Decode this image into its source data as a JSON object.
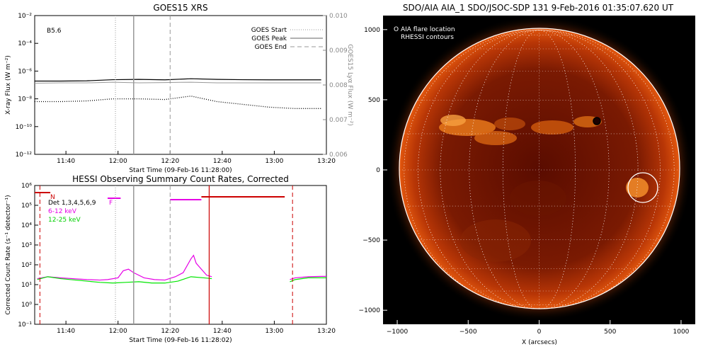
{
  "chart_data": [
    {
      "type": "line",
      "title": "GOES15 XRS",
      "xlabel": "Start Time (09-Feb-16 11:28:00)",
      "ylabel": "X-ray Flux (W m⁻²)",
      "ylabel2": "GOES15 Lyα Flux (W m⁻²)",
      "annotation": "B5.6",
      "x_ticks": [
        "11:40",
        "12:00",
        "12:20",
        "12:40",
        "13:00",
        "13:20"
      ],
      "y_ticks": [
        "10⁻²",
        "10⁻⁴",
        "10⁻⁶",
        "10⁻⁸",
        "10⁻¹⁰",
        "10⁻¹²"
      ],
      "y2_ticks": [
        "0.010",
        "0.009",
        "0.008",
        "0.007",
        "0.006"
      ],
      "y_scale": "log",
      "ylim_exp": [
        -12,
        -2
      ],
      "y2lim": [
        0.006,
        0.01
      ],
      "xlim_min": [
        0,
        112
      ],
      "legend": [
        "GOES Start",
        "GOES Peak",
        "GOES End"
      ],
      "legend_placement": "top-right",
      "event_lines_min": {
        "start": 31,
        "peak": 38,
        "end": 52
      },
      "series": [
        {
          "values_log": [
            -6.72,
            -6.72,
            -6.7,
            -6.62,
            -6.6,
            -6.63,
            -6.55,
            -6.6,
            -6.62,
            -6.63,
            -6.63,
            -6.63
          ]
        },
        {
          "values_lya": [
            0.00805,
            0.00806,
            0.00806,
            0.00808,
            0.00806,
            0.00807,
            0.00808,
            0.00806,
            0.00806,
            0.00806,
            0.00806,
            0.00806
          ]
        },
        {
          "values_log": [
            -8.2,
            -8.2,
            -8.15,
            -8.0,
            -8.0,
            -8.05,
            -7.8,
            -8.2,
            -8.4,
            -8.6,
            -8.7,
            -8.7
          ]
        }
      ],
      "x_min": [
        0,
        10,
        20,
        30,
        40,
        50,
        60,
        70,
        80,
        90,
        100,
        110
      ]
    },
    {
      "type": "line",
      "title": "HESSI Observing Summary Count Rates, Corrected",
      "xlabel": "Start Time (09-Feb-16 11:28:02)",
      "ylabel": "Corrected Count Rate (s⁻¹ detector⁻¹)",
      "x_ticks": [
        "11:40",
        "12:00",
        "12:20",
        "12:40",
        "13:00",
        "13:20"
      ],
      "y_ticks": [
        "10⁶",
        "10⁵",
        "10⁴",
        "10³",
        "10²",
        "10¹",
        "10⁰",
        "10⁻¹"
      ],
      "y_scale": "log",
      "ylim_exp": [
        -1,
        6
      ],
      "xlim_min": [
        0,
        112
      ],
      "flags": {
        "N": "N",
        "F": "F"
      },
      "legend": [
        {
          "name": "Det 1,3,4,5,6,9",
          "color": "#000000"
        },
        {
          "name": "6-12 keV",
          "color": "#e600e6"
        },
        {
          "name": "12-25 keV",
          "color": "#00e600"
        }
      ],
      "series": [
        {
          "name": "6-12 keV",
          "x_min": [
            1,
            5,
            10,
            20,
            25,
            28,
            32,
            34,
            36,
            38,
            42,
            46,
            50,
            54,
            57,
            60,
            61,
            62,
            64,
            66,
            68,
            98,
            100,
            105,
            110,
            112
          ],
          "values": [
            20,
            25,
            22,
            18,
            17,
            18,
            22,
            50,
            60,
            40,
            22,
            18,
            17,
            25,
            40,
            200,
            300,
            120,
            60,
            30,
            25,
            18,
            22,
            25,
            26,
            26
          ]
        },
        {
          "name": "12-25 keV",
          "x_min": [
            1,
            5,
            10,
            20,
            25,
            30,
            35,
            40,
            45,
            50,
            55,
            60,
            65,
            68,
            98,
            100,
            105,
            110,
            112
          ],
          "values": [
            18,
            25,
            20,
            15,
            13,
            12,
            13,
            14,
            12,
            12,
            15,
            25,
            22,
            20,
            14,
            18,
            22,
            22,
            22
          ]
        }
      ]
    },
    {
      "type": "image",
      "title": "SDO/AIA AIA_1 SDO/JSOC-SDP 131  9-Feb-2016 01:35:07.620 UT",
      "xlabel": "X (arcsecs)",
      "x_ticks": [
        "−1000",
        "−500",
        "0",
        "500",
        "1000"
      ],
      "y_ticks": [
        "1000",
        "500",
        "0",
        "−500",
        "−1000"
      ],
      "xlim": [
        -1100,
        1100
      ],
      "ylim": [
        -1100,
        1100
      ],
      "legend": [
        "O AIA flare location",
        "RHESSI contours"
      ],
      "legend_placement": "top-left",
      "flare_location": {
        "x": 400,
        "y": 330
      },
      "rhessi_contour": {
        "x": 720,
        "y": -130,
        "r": 100
      },
      "solar_radius": 985
    }
  ]
}
